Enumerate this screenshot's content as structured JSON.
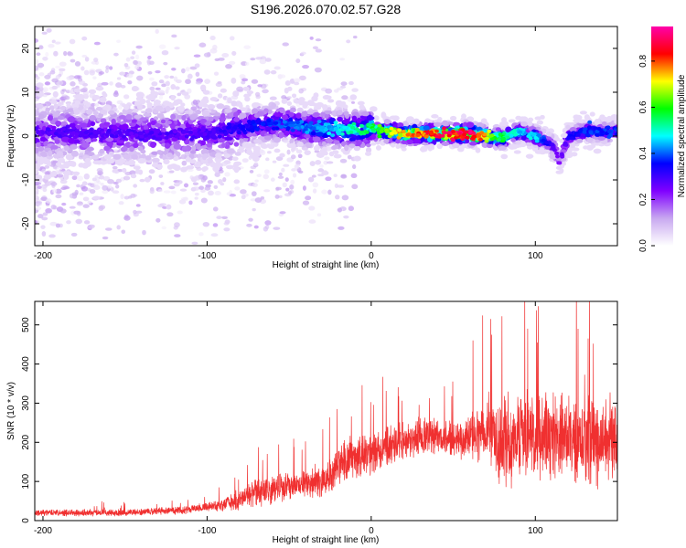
{
  "title": "S196.2026.070.02.57.G28",
  "colors": {
    "trace": "#f03030",
    "scatter_low": "#d9c2f7",
    "scatter_mid": "#8a2be2",
    "colormap": [
      "#ffffff",
      "#c8a8f0",
      "#8000ff",
      "#0000ff",
      "#00ffff",
      "#00ff00",
      "#ffff00",
      "#ff0000",
      "#ff00aa"
    ]
  },
  "chart_data": [
    {
      "type": "heatmap",
      "title": "S196.2026.070.02.57.G28",
      "xlabel": "Height of straight line (km)",
      "ylabel": "Frequency (Hz)",
      "xlim": [
        -205,
        150
      ],
      "ylim": [
        -25,
        25
      ],
      "xticks": [
        -200,
        -100,
        0,
        100
      ],
      "xtick_labels": [
        "-200",
        "-100",
        "0",
        "100"
      ],
      "yticks": [
        -20,
        -10,
        0,
        10,
        20
      ],
      "ytick_labels": [
        "-20",
        "-10",
        "0",
        "10",
        "20"
      ],
      "colorbar": {
        "label": "Normalized spectral amplitude",
        "range": [
          0.0,
          0.95
        ],
        "ticks": [
          0.0,
          0.2,
          0.4,
          0.6,
          0.8
        ],
        "tick_labels": [
          "0.0",
          "0.2",
          "0.4",
          "0.6",
          "0.8"
        ]
      },
      "ridge": {
        "x": [
          -205,
          -150,
          -100,
          -60,
          -40,
          -20,
          0,
          20,
          40,
          60,
          80,
          90,
          100,
          110,
          115,
          120,
          130,
          150
        ],
        "frequency": [
          1,
          0.5,
          0.5,
          3,
          2,
          1.5,
          1.5,
          0.5,
          0.5,
          0.5,
          -0.5,
          1,
          0,
          -2,
          -6,
          0,
          1,
          1
        ],
        "peak_amplitude": [
          0.3,
          0.3,
          0.3,
          0.4,
          0.45,
          0.5,
          0.6,
          0.8,
          0.9,
          0.95,
          0.6,
          0.5,
          0.5,
          0.3,
          0.25,
          0.35,
          0.4,
          0.4
        ]
      }
    },
    {
      "type": "line",
      "xlabel": "Height of straight line (km)",
      "ylabel": "SNR (10 * v/v)",
      "xlim": [
        -205,
        150
      ],
      "ylim": [
        0,
        560
      ],
      "xticks": [
        -200,
        -100,
        0,
        100
      ],
      "xtick_labels": [
        "-200",
        "-100",
        "0",
        "100"
      ],
      "yticks": [
        0,
        100,
        200,
        300,
        400,
        500
      ],
      "ytick_labels": [
        "0",
        "100",
        "200",
        "300",
        "400",
        "500"
      ],
      "envelope": {
        "x": [
          -205,
          -150,
          -110,
          -100,
          -90,
          -80,
          -70,
          -60,
          -50,
          -40,
          -30,
          -20,
          -10,
          0,
          10,
          20,
          30,
          40,
          50,
          60,
          70,
          80,
          90,
          100,
          110,
          120,
          130,
          140,
          150
        ],
        "mean": [
          20,
          20,
          28,
          35,
          40,
          55,
          70,
          80,
          90,
          95,
          100,
          140,
          160,
          165,
          190,
          205,
          215,
          215,
          205,
          215,
          240,
          200,
          220,
          230,
          215,
          215,
          200,
          200,
          210
        ],
        "spread": [
          10,
          10,
          12,
          15,
          20,
          30,
          40,
          40,
          45,
          45,
          50,
          60,
          60,
          65,
          60,
          55,
          55,
          50,
          50,
          65,
          110,
          140,
          120,
          130,
          130,
          120,
          130,
          130,
          120
        ]
      }
    }
  ]
}
